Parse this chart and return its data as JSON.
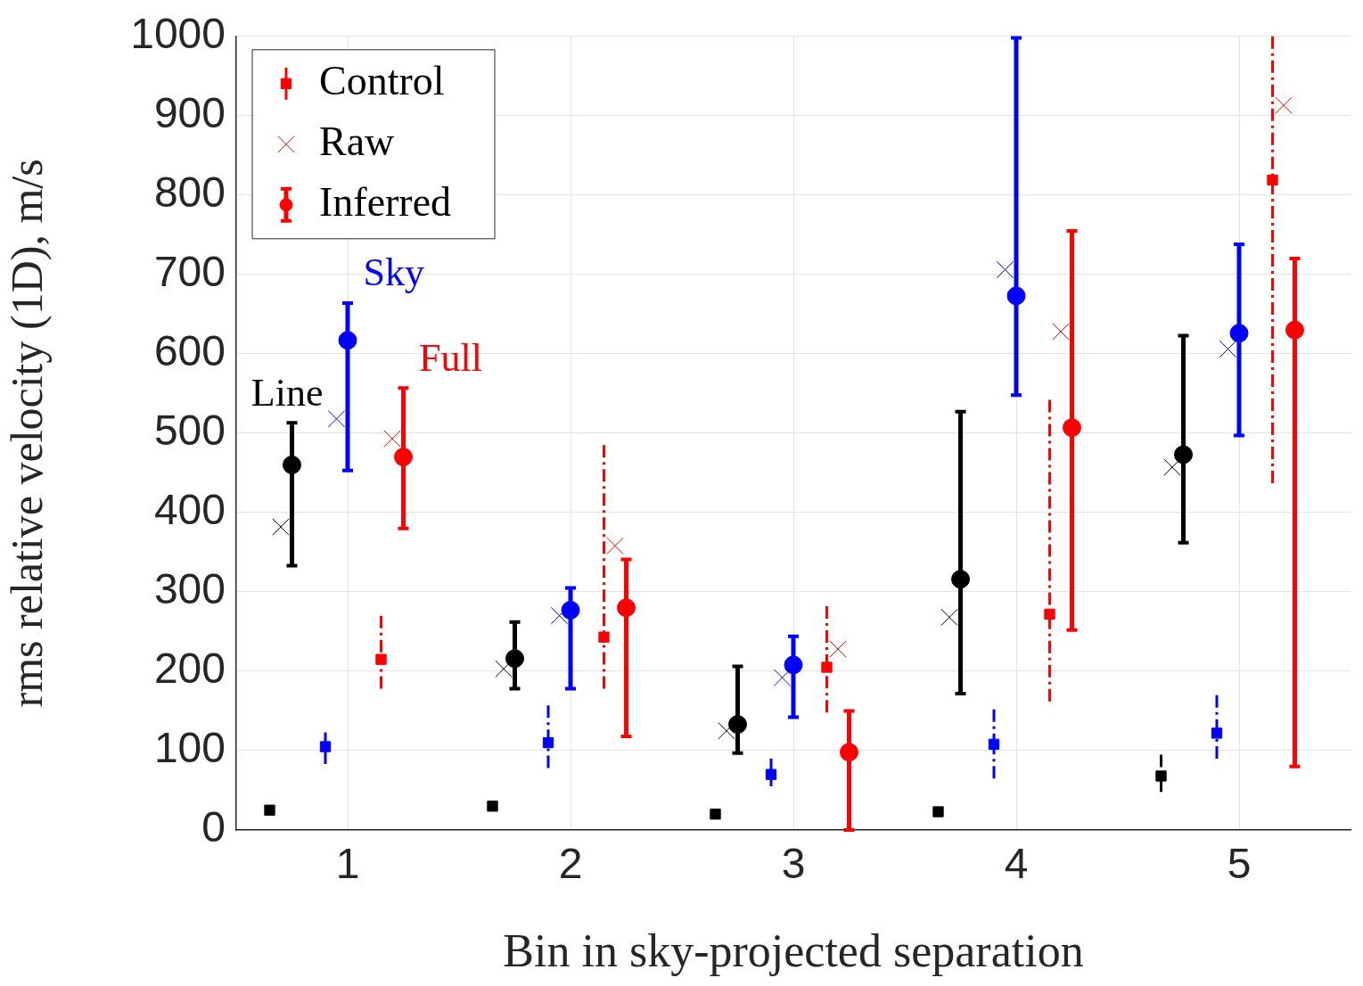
{
  "chart_data": {
    "type": "scatter",
    "xlabel": "Bin in sky-projected separation",
    "ylabel": "rms relative velocity (1D), m/s",
    "xlim": [
      0.5,
      5.5
    ],
    "xticks": [
      1,
      2,
      3,
      4,
      5
    ],
    "ylim": [
      0,
      1000
    ],
    "yticks": [
      0,
      100,
      200,
      300,
      400,
      500,
      600,
      700,
      800,
      900,
      1000
    ],
    "grid": true,
    "legend": "top left",
    "annotations": [
      "Line",
      "Sky",
      "Full"
    ],
    "series": [
      {
        "color": "#000000",
        "marker": "square",
        "line_style": "dashed",
        "x": [
          0.65,
          1.65,
          2.65,
          3.65,
          4.65
        ],
        "values": [
          25,
          30,
          20,
          23,
          68
        ],
        "errors": [
          null,
          null,
          null,
          null,
          [
            48,
            95
          ]
        ]
      },
      {
        "color": "#000000",
        "marker": "cross",
        "x": [
          0.7,
          1.7,
          2.7,
          3.7,
          4.7
        ],
        "values": [
          382,
          203,
          125,
          268,
          457
        ]
      },
      {
        "color": "#000000",
        "marker": "circle",
        "line_style": "solid",
        "x": [
          0.75,
          1.75,
          2.75,
          3.75,
          4.75
        ],
        "values": [
          460,
          216,
          133,
          316,
          473
        ],
        "errors": [
          [
            333,
            513
          ],
          [
            178,
            262
          ],
          [
            97,
            206
          ],
          [
            172,
            527
          ],
          [
            362,
            623
          ]
        ]
      },
      {
        "color": "#0000ff",
        "marker": "square",
        "line_style": "dashed",
        "x": [
          0.9,
          1.9,
          2.9,
          3.9,
          4.9
        ],
        "values": [
          105,
          110,
          70,
          108,
          122
        ],
        "errors": [
          [
            83,
            123
          ],
          [
            78,
            157
          ],
          [
            55,
            90
          ],
          [
            65,
            152
          ],
          [
            90,
            170
          ]
        ]
      },
      {
        "color": "#0000ff",
        "marker": "cross",
        "x": [
          0.95,
          1.95,
          2.95,
          3.95,
          4.95
        ],
        "values": [
          518,
          270,
          192,
          706,
          606
        ]
      },
      {
        "color": "#0000ff",
        "marker": "circle",
        "line_style": "solid",
        "x": [
          1,
          2,
          3,
          4,
          5
        ],
        "values": [
          617,
          277,
          208,
          673,
          626
        ],
        "errors": [
          [
            453,
            664
          ],
          [
            178,
            305
          ],
          [
            142,
            244
          ],
          [
            548,
            998
          ],
          [
            497,
            738
          ]
        ]
      },
      {
        "name": "Control",
        "color": "#ff0000",
        "marker": "square",
        "line_style": "dashed",
        "x": [
          1.15,
          2.15,
          3.15,
          4.15,
          5.15
        ],
        "values": [
          215,
          243,
          205,
          272,
          819
        ],
        "errors": [
          [
            178,
            270
          ],
          [
            178,
            485
          ],
          [
            148,
            282
          ],
          [
            162,
            542
          ],
          [
            437,
            1000
          ]
        ]
      },
      {
        "name": "Raw",
        "color": "#ff0000",
        "marker": "cross",
        "x": [
          1.2,
          2.2,
          3.2,
          4.2,
          5.2
        ],
        "values": [
          493,
          358,
          228,
          628,
          913
        ]
      },
      {
        "name": "Inferred",
        "color": "#ff0000",
        "marker": "circle",
        "line_style": "solid",
        "x": [
          1.25,
          2.25,
          3.25,
          4.25,
          5.25
        ],
        "values": [
          470,
          280,
          98,
          507,
          630
        ],
        "errors": [
          [
            380,
            557
          ],
          [
            118,
            341
          ],
          [
            0,
            150
          ],
          [
            252,
            755
          ],
          [
            80,
            720
          ]
        ]
      }
    ]
  }
}
